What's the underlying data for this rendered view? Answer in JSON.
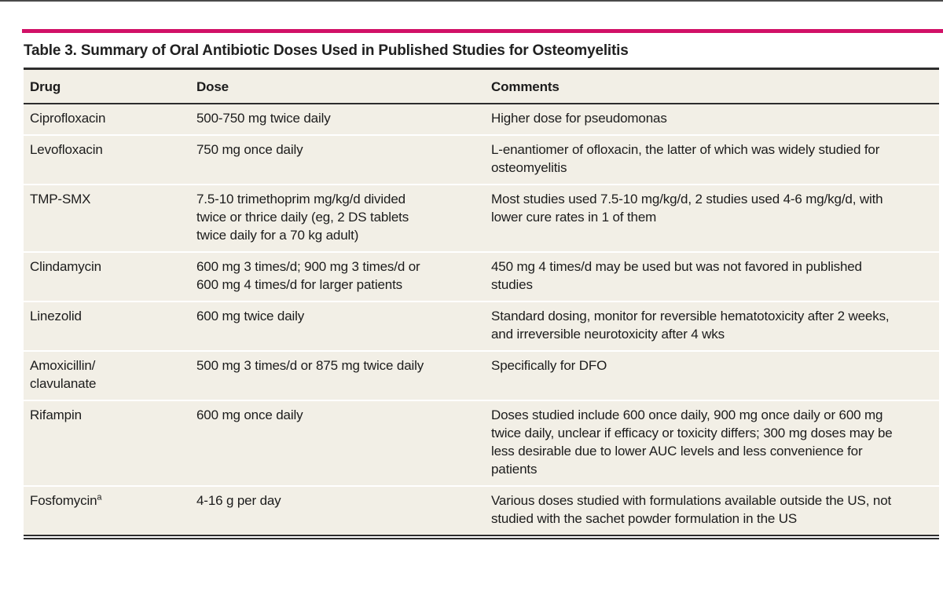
{
  "page": {
    "title": "Table 3. Summary of Oral Antibiotic Doses Used in Published Studies for Osteomyelitis"
  },
  "colors": {
    "accent_rule": "#d11167",
    "row_background": "#f2efe6",
    "dark_rule": "#2d2d2d",
    "text": "#1c1c1c"
  },
  "table": {
    "columns": [
      "Drug",
      "Dose",
      "Comments"
    ],
    "rows": [
      {
        "drug": "Ciprofloxacin",
        "dose": "500-750 mg twice daily",
        "comments": "Higher dose for pseudomonas"
      },
      {
        "drug": "Levofloxacin",
        "dose": "750 mg once daily",
        "comments": "L-enantiomer of ofloxacin, the latter of which was widely studied for osteomyelitis"
      },
      {
        "drug": "TMP-SMX",
        "dose": "7.5-10 trimethoprim mg/kg/d divided twice or thrice daily (eg, 2 DS tablets twice daily for a 70 kg adult)",
        "comments": "Most studies used 7.5-10 mg/kg/d, 2 studies used 4-6 mg/kg/d, with lower cure rates in 1 of them"
      },
      {
        "drug": "Clindamycin",
        "dose": "600 mg 3 times/d; 900 mg 3 times/d or 600 mg 4 times/d for larger patients",
        "comments": "450 mg 4 times/d may be used but was not favored in published studies"
      },
      {
        "drug": "Linezolid",
        "dose": "600 mg twice daily",
        "comments": "Standard dosing, monitor for reversible hematotoxicity after 2 weeks, and irreversible neurotoxicity after 4 wks"
      },
      {
        "drug": "Amoxicillin/\nclavulanate",
        "dose": "500 mg 3 times/d or 875 mg twice daily",
        "comments": "Specifically for DFO"
      },
      {
        "drug": "Rifampin",
        "dose": "600 mg once daily",
        "comments": "Doses studied include 600 once daily, 900 mg once daily or 600 mg twice daily, unclear if efficacy or toxicity differs; 300 mg doses may be less desirable due to lower AUC levels and less convenience for patients"
      },
      {
        "drug": "Fosfomycin",
        "drug_sup": "a",
        "dose": "4-16 g per day",
        "comments": "Various doses studied with formulations available outside the US, not studied with the sachet powder formulation in the US"
      }
    ]
  }
}
